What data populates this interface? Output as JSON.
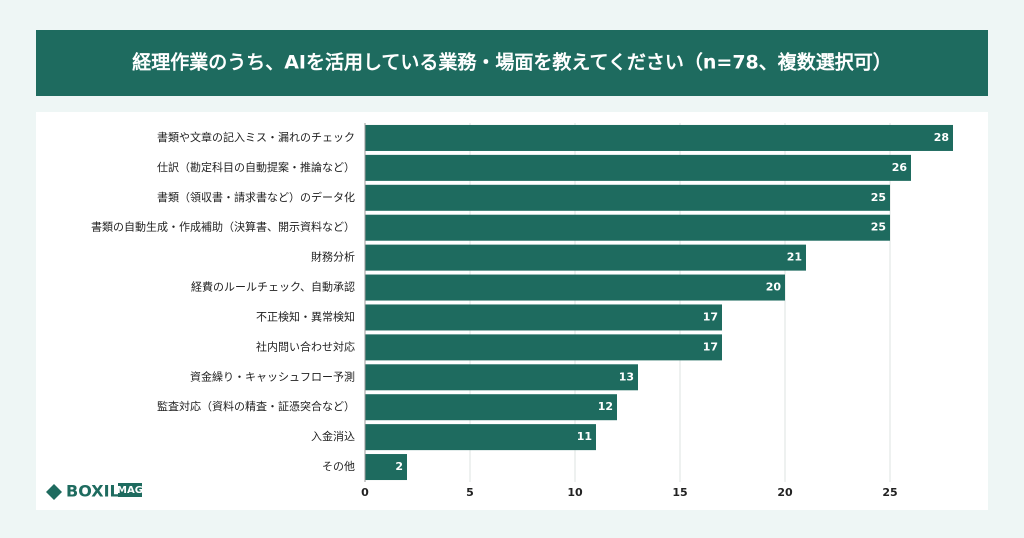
{
  "chart_data": {
    "type": "barh",
    "title": "経理作業のうち、AIを活用している業務・場面を教えてください（n=78、複数選択可）",
    "categories": [
      "書類や文章の記入ミス・漏れのチェック",
      "仕訳（勘定科目の自動提案・推論など）",
      "書類（領収書・請求書など）のデータ化",
      "書類の自動生成・作成補助（決算書、開示資料など）",
      "財務分析",
      "経費のルールチェック、自動承認",
      "不正検知・異常検知",
      "社内問い合わせ対応",
      "資金繰り・キャッシュフロー予測",
      "監査対応（資料の精査・証憑突合など）",
      "入金消込",
      "その他"
    ],
    "values": [
      28,
      26,
      25,
      25,
      21,
      20,
      17,
      17,
      13,
      12,
      11,
      2
    ],
    "color": "#1e6b5f",
    "xlim": [
      0,
      28
    ],
    "xticks": [
      0,
      5,
      10,
      15,
      20,
      25
    ],
    "grid": true
  },
  "logo": {
    "name": "BOXIL",
    "badge": "MAG"
  }
}
